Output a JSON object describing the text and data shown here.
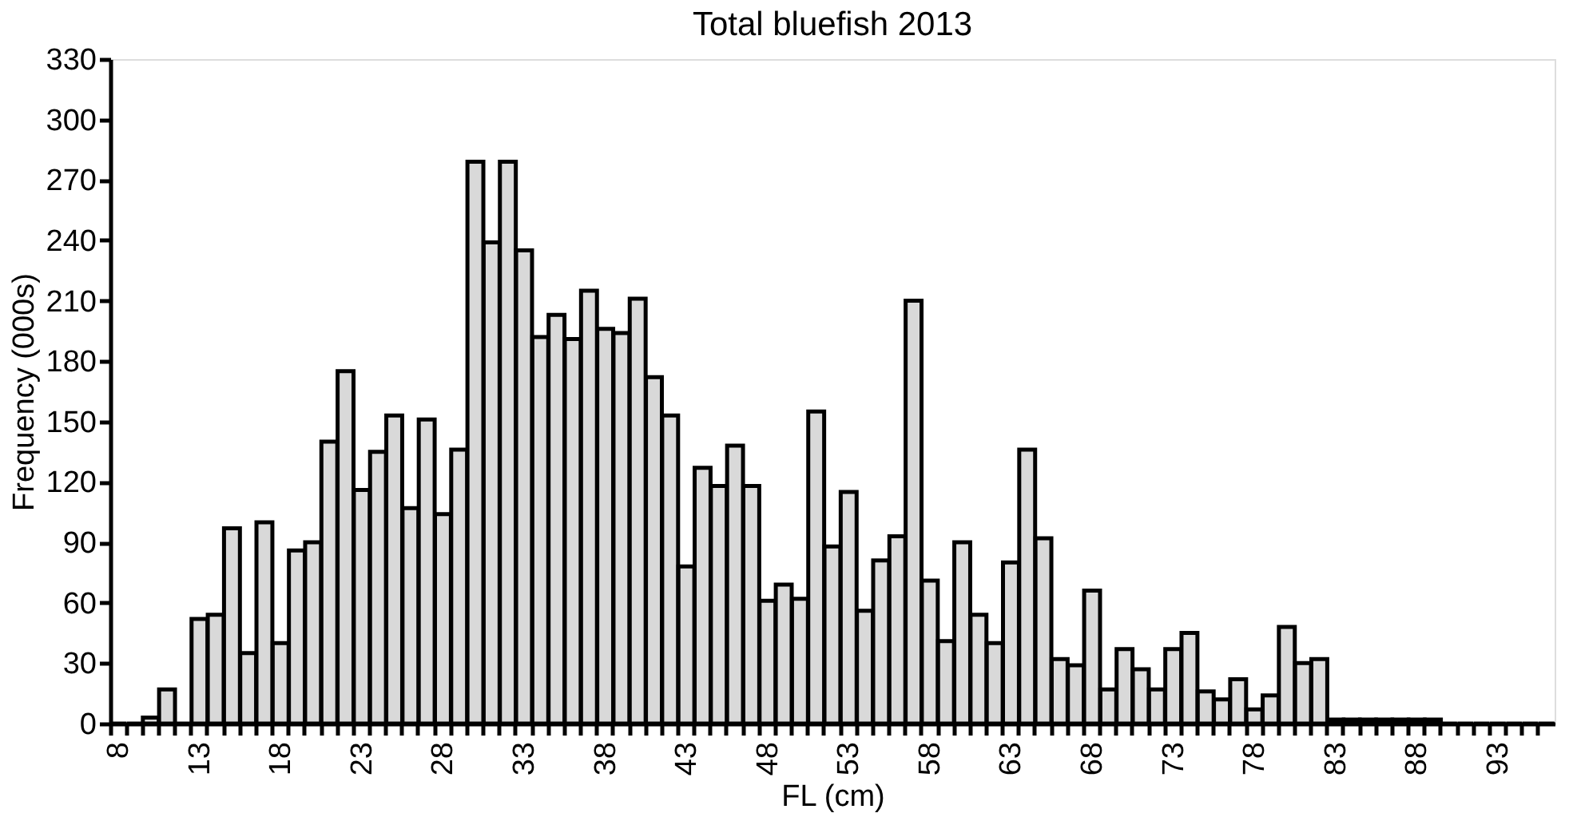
{
  "chart_data": {
    "type": "bar",
    "title": "Total bluefish 2013",
    "xlabel": "FL (cm)",
    "ylabel": "Frequency (000s)",
    "categories": [
      "8",
      null,
      null,
      null,
      null,
      "13",
      null,
      null,
      null,
      null,
      "18",
      null,
      null,
      null,
      null,
      "23",
      null,
      null,
      null,
      null,
      "28",
      null,
      null,
      null,
      null,
      "33",
      null,
      null,
      null,
      null,
      "38",
      null,
      null,
      null,
      null,
      "43",
      null,
      null,
      null,
      null,
      "48",
      null,
      null,
      null,
      null,
      "53",
      null,
      null,
      null,
      null,
      "58",
      null,
      null,
      null,
      null,
      "63",
      null,
      null,
      null,
      null,
      "68",
      null,
      null,
      null,
      null,
      "73",
      null,
      null,
      null,
      null,
      "78",
      null,
      null,
      null,
      null,
      "83",
      null,
      null,
      null,
      null,
      "88",
      null,
      null,
      null,
      null,
      "93",
      null,
      null,
      null
    ],
    "values": [
      0,
      0,
      3,
      17,
      0,
      52,
      54,
      97,
      35,
      100,
      40,
      86,
      90,
      140,
      175,
      116,
      135,
      153,
      107,
      151,
      104,
      136,
      279,
      239,
      279,
      235,
      192,
      203,
      191,
      215,
      196,
      194,
      211,
      172,
      153,
      78,
      127,
      118,
      138,
      118,
      61,
      69,
      62,
      155,
      88,
      115,
      56,
      81,
      93,
      210,
      71,
      41,
      90,
      54,
      40,
      80,
      136,
      92,
      32,
      29,
      66,
      17,
      37,
      27,
      17,
      37,
      45,
      16,
      12,
      22,
      7,
      14,
      48,
      30,
      32,
      2,
      2,
      2,
      2,
      2,
      2,
      2,
      0,
      0,
      0,
      0,
      0,
      0,
      0
    ],
    "color": "#d9d9d9",
    "ylim": [
      0,
      330
    ],
    "yticks": [
      0,
      30,
      60,
      90,
      120,
      150,
      180,
      210,
      240,
      270,
      300,
      330
    ],
    "grid": false
  }
}
